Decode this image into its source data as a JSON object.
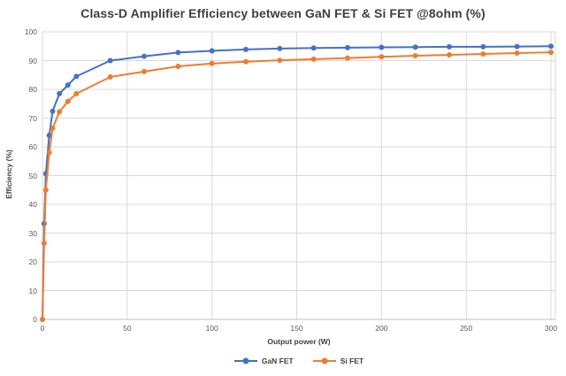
{
  "title": "Class-D Amplifier Efficiency between GaN FET & Si FET @8ohm (%)",
  "chart_data": {
    "type": "line",
    "title": "Class-D Amplifier Efficiency between GaN FET & Si FET @8ohm (%)",
    "xlabel": "Output power (W)",
    "ylabel": "Efficiency (%)",
    "xlim": [
      0,
      300
    ],
    "ylim": [
      0,
      100
    ],
    "x_ticks": [
      0,
      50,
      100,
      150,
      200,
      250,
      300
    ],
    "y_ticks": [
      0,
      10,
      20,
      30,
      40,
      50,
      60,
      70,
      80,
      90,
      100
    ],
    "grid": true,
    "legend_position": "bottom",
    "x": [
      0,
      1,
      2,
      4,
      6,
      10,
      15,
      20,
      40,
      60,
      80,
      100,
      120,
      140,
      160,
      180,
      200,
      220,
      240,
      260,
      280,
      300
    ],
    "series": [
      {
        "name": "GaN FET",
        "color": "#4472C4",
        "values": [
          0,
          33.3,
          50.7,
          64,
          72.4,
          78.5,
          81.5,
          84.5,
          90,
          91.5,
          92.8,
          93.4,
          93.9,
          94.2,
          94.4,
          94.5,
          94.6,
          94.7,
          94.8,
          94.8,
          94.9,
          95
        ]
      },
      {
        "name": "Si FET",
        "color": "#ED7D31",
        "values": [
          0,
          26.5,
          45,
          58,
          66.5,
          72.2,
          75.8,
          78.5,
          84.3,
          86.2,
          88,
          89,
          89.6,
          90.1,
          90.5,
          90.9,
          91.3,
          91.7,
          92,
          92.3,
          92.6,
          92.9
        ]
      }
    ]
  },
  "colors": {
    "background": "#ffffff",
    "gridline": "#d9d9d9",
    "axis_line": "#bfbfbf",
    "tick_text": "#595959",
    "title_text": "#3f3f3f"
  }
}
